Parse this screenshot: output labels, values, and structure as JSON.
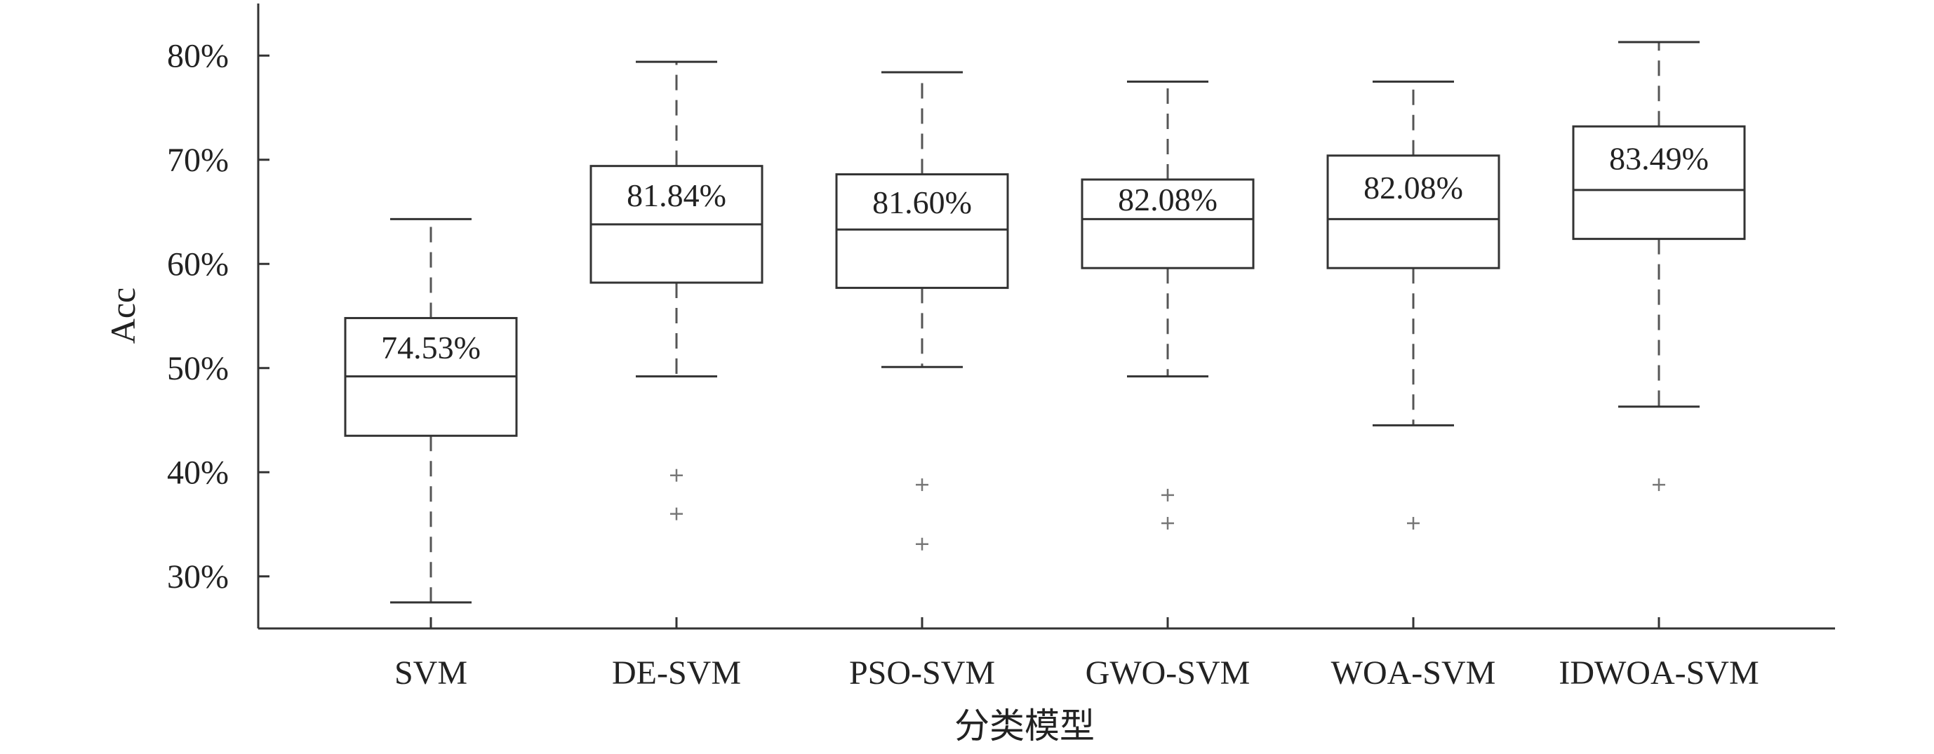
{
  "chart_data": {
    "type": "boxplot",
    "title": "",
    "xlabel": "分类模型",
    "ylabel": "Acc",
    "ylim": [
      25,
      85
    ],
    "y_ticks": [
      30,
      40,
      50,
      60,
      70,
      80
    ],
    "y_tick_format": "percent",
    "grid": false,
    "legend": "none",
    "colors": {
      "axis": "#333333",
      "box": "#333333",
      "whisker": "#555555",
      "outlier": "#777777"
    },
    "categories": [
      "SVM",
      "DE-SVM",
      "PSO-SVM",
      "GWO-SVM",
      "WOA-SVM",
      "IDWOA-SVM"
    ],
    "boxes": [
      {
        "category": "SVM",
        "whisker_low": 27.5,
        "q1": 43.5,
        "median": 49.2,
        "q3": 54.8,
        "whisker_high": 64.3,
        "outliers": [],
        "label": "74.53%"
      },
      {
        "category": "DE-SVM",
        "whisker_low": 49.2,
        "q1": 58.2,
        "median": 63.8,
        "q3": 69.4,
        "whisker_high": 79.4,
        "outliers": [
          39.7,
          36.0
        ],
        "label": "81.84%"
      },
      {
        "category": "PSO-SVM",
        "whisker_low": 50.1,
        "q1": 57.7,
        "median": 63.3,
        "q3": 68.6,
        "whisker_high": 78.4,
        "outliers": [
          38.8,
          33.1
        ],
        "label": "81.60%"
      },
      {
        "category": "GWO-SVM",
        "whisker_low": 49.2,
        "q1": 59.6,
        "median": 64.3,
        "q3": 68.1,
        "whisker_high": 77.5,
        "outliers": [
          37.8,
          35.1
        ],
        "label": "82.08%"
      },
      {
        "category": "WOA-SVM",
        "whisker_low": 44.5,
        "q1": 59.6,
        "median": 64.3,
        "q3": 70.4,
        "whisker_high": 77.5,
        "outliers": [
          35.1
        ],
        "label": "82.08%"
      },
      {
        "category": "IDWOA-SVM",
        "whisker_low": 46.3,
        "q1": 62.4,
        "median": 67.1,
        "q3": 73.2,
        "whisker_high": 81.3,
        "outliers": [
          38.8
        ],
        "label": "83.49%"
      }
    ]
  }
}
